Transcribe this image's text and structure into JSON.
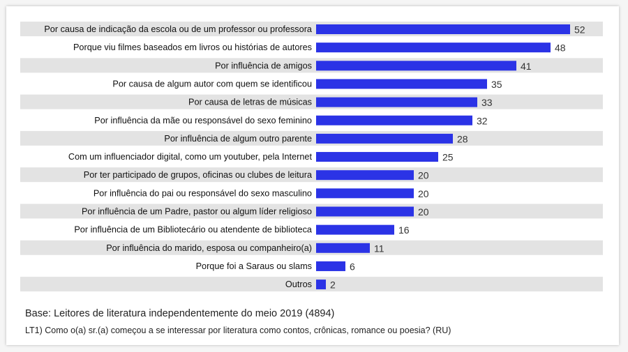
{
  "chart_data": {
    "type": "bar",
    "orientation": "horizontal",
    "categories": [
      "Por causa de indicação da escola ou de um professor ou professora",
      "Porque viu filmes baseados em livros ou histórias de autores",
      "Por influência de amigos",
      "Por causa de algum autor com quem se identificou",
      "Por causa de letras de músicas",
      "Por influência da mãe ou responsável do sexo feminino",
      "Por influência de algum outro parente",
      "Com um influenciador digital, como um youtuber, pela Internet",
      "Por ter participado de grupos, oficinas ou clubes de leitura",
      "Por influência do pai ou responsável do sexo masculino",
      "Por influência de um Padre, pastor ou algum líder religioso",
      "Por influência de um Bibliotecário ou atendente de biblioteca",
      "Por influência do marido, esposa ou companheiro(a)",
      "Porque foi a Saraus ou slams",
      "Outros"
    ],
    "values": [
      52,
      48,
      41,
      35,
      33,
      32,
      28,
      25,
      20,
      20,
      20,
      16,
      11,
      6,
      2
    ],
    "xlim": [
      0,
      52
    ],
    "bar_color": "#2b33e6",
    "band_color": "#e3e3e3",
    "grid": false,
    "legend": "none",
    "data_labels": true
  },
  "footnotes": {
    "base": "Base: Leitores de literatura independentemente do meio 2019 (4894)",
    "question": "LT1) Como o(a) sr.(a) começou a se interessar por literatura como contos, crônicas, romance ou poesia? (RU)"
  }
}
